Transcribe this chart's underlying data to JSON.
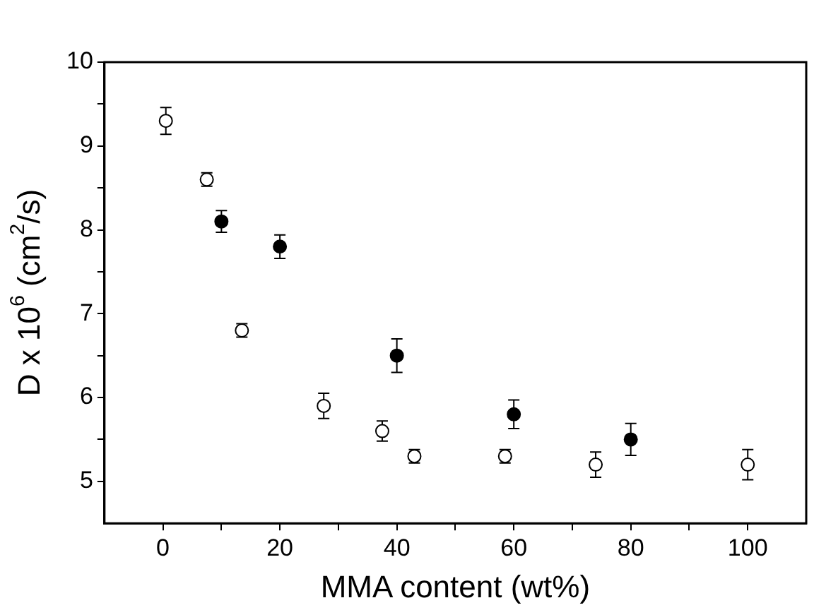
{
  "chart_data": {
    "type": "scatter",
    "xlabel": "MMA content (wt%)",
    "ylabel": "D x 10$^{6}$ (cm$^{2}$/s)",
    "xlim": [
      -10,
      110
    ],
    "xticks": [
      0,
      {
        "value": 10,
        "label": null
      },
      20,
      {
        "value": 30,
        "label": null
      },
      40,
      {
        "value": 50,
        "label": null
      },
      60,
      {
        "value": 70,
        "label": null
      },
      80,
      {
        "value": 90,
        "label": null
      },
      100
    ],
    "ylim": [
      4.5,
      10
    ],
    "yticks": [
      5,
      {
        "value": 5.5,
        "label": null
      },
      6,
      {
        "value": 6.5,
        "label": null
      },
      7,
      {
        "value": 7.5,
        "label": null
      },
      8,
      {
        "value": 8.5,
        "label": null
      },
      9,
      {
        "value": 9.5,
        "label": null
      },
      10
    ],
    "grid": false,
    "legend": false,
    "marker": "circle",
    "series": [
      {
        "color": "#ffffff",
        "x": [
          0.5,
          7.5,
          13.5,
          27.5,
          37.5,
          43,
          58.5,
          74,
          100
        ],
        "values": [
          9.3,
          8.6,
          6.8,
          5.9,
          5.6,
          5.3,
          5.3,
          5.2,
          5.2
        ],
        "errors": [
          0.16,
          0.08,
          0.08,
          0.15,
          0.12,
          0.08,
          0.08,
          0.15,
          0.18
        ]
      },
      {
        "color": "#000000",
        "x": [
          10,
          20,
          40,
          60,
          80
        ],
        "values": [
          8.1,
          7.8,
          6.5,
          5.8,
          5.5
        ],
        "errors": [
          0.13,
          0.14,
          0.2,
          0.17,
          0.19
        ]
      }
    ]
  }
}
